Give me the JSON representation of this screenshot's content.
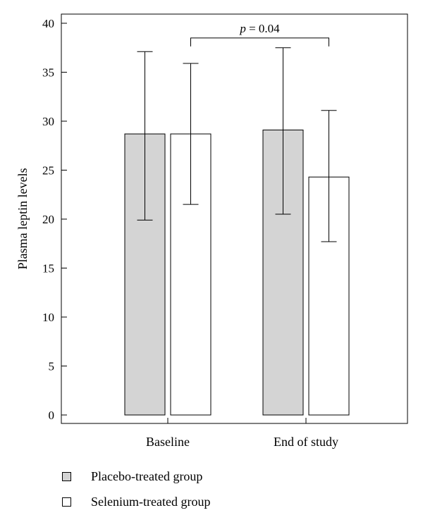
{
  "chart_data": {
    "type": "bar",
    "title": "",
    "xlabel": "",
    "ylabel": "Plasma leptin levels",
    "ylim": [
      0,
      40
    ],
    "yticks": [
      0,
      5,
      10,
      15,
      20,
      25,
      30,
      35,
      40
    ],
    "categories": [
      "Baseline",
      "End of study"
    ],
    "series": [
      {
        "name": "Placebo-treated group",
        "color": "#d4d4d4",
        "values": [
          28.7,
          29.1
        ],
        "error_low": [
          19.9,
          20.5
        ],
        "error_high": [
          37.1,
          37.5
        ]
      },
      {
        "name": "Selenium-treated group",
        "color": "#ffffff",
        "values": [
          28.7,
          24.3
        ],
        "error_low": [
          21.5,
          17.7
        ],
        "error_high": [
          35.9,
          31.1
        ]
      }
    ],
    "annotations": [
      {
        "type": "significance-bracket",
        "from": {
          "category": "Baseline",
          "series": "Selenium-treated group"
        },
        "to": {
          "category": "End of study",
          "series": "Selenium-treated group"
        },
        "text": "p = 0.04",
        "p_symbol": "p",
        "p_rest": " = 0.04",
        "level": 38.5
      }
    ],
    "grid": false,
    "legend_position": "bottom-left"
  },
  "legend": {
    "items": [
      {
        "label": "Placebo-treated group",
        "color": "#d4d4d4"
      },
      {
        "label": "Selenium-treated group",
        "color": "#ffffff"
      }
    ]
  }
}
